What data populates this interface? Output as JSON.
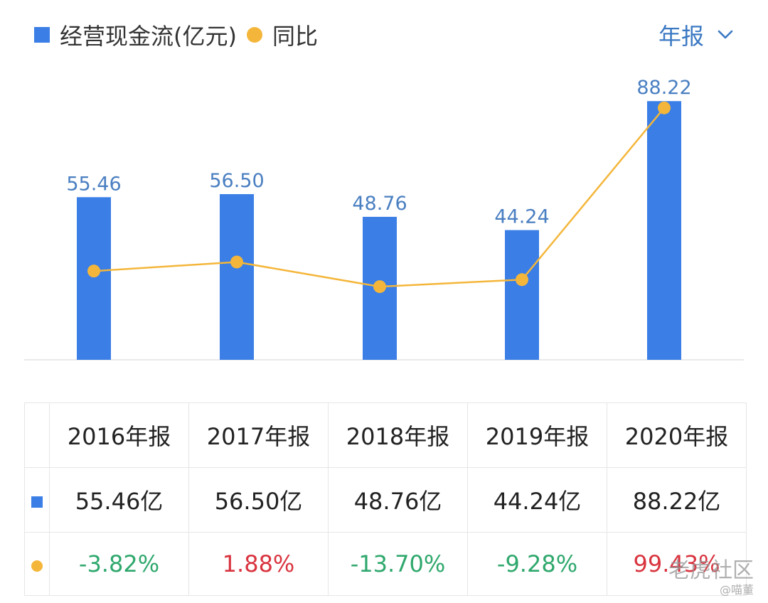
{
  "legend": {
    "bar_label": "经营现金流(亿元)",
    "line_label": "同比"
  },
  "period_selector": {
    "label": "年报",
    "icon": "chevron-down-icon"
  },
  "colors": {
    "bar": "#3a7ee6",
    "line": "#f4b63a",
    "bar_label": "#4a7fc1",
    "positive": "#d9343f",
    "negative": "#2fa86d",
    "accent": "#3b79c3",
    "axis": "#e3e3e3"
  },
  "chart_data": {
    "type": "bar",
    "categories": [
      "2016年报",
      "2017年报",
      "2018年报",
      "2019年报",
      "2020年报"
    ],
    "series": [
      {
        "name": "经营现金流(亿元)",
        "type": "bar",
        "axis": "left",
        "values": [
          55.46,
          56.5,
          48.76,
          44.24,
          88.22
        ],
        "labels": [
          "55.46",
          "56.50",
          "48.76",
          "44.24",
          "88.22"
        ]
      },
      {
        "name": "同比",
        "type": "line",
        "axis": "right",
        "values": [
          -3.82,
          1.88,
          -13.7,
          -9.28,
          99.43
        ]
      }
    ],
    "ylim_left": [
      0,
      97
    ],
    "ylim_right": [
      -60,
      120
    ],
    "grid": false,
    "legend_position": "top-left"
  },
  "table": {
    "headers": [
      "2016年报",
      "2017年报",
      "2018年报",
      "2019年报",
      "2020年报"
    ],
    "value_row": [
      "55.46亿",
      "56.50亿",
      "48.76亿",
      "44.24亿",
      "88.22亿"
    ],
    "yoy_row": [
      "-3.82%",
      "1.88%",
      "-13.70%",
      "-9.28%",
      "99.43%"
    ],
    "yoy_sign": [
      "negative",
      "positive",
      "negative",
      "negative",
      "positive"
    ]
  },
  "watermark": {
    "main": "老虎社区",
    "sub": "@喵董"
  }
}
